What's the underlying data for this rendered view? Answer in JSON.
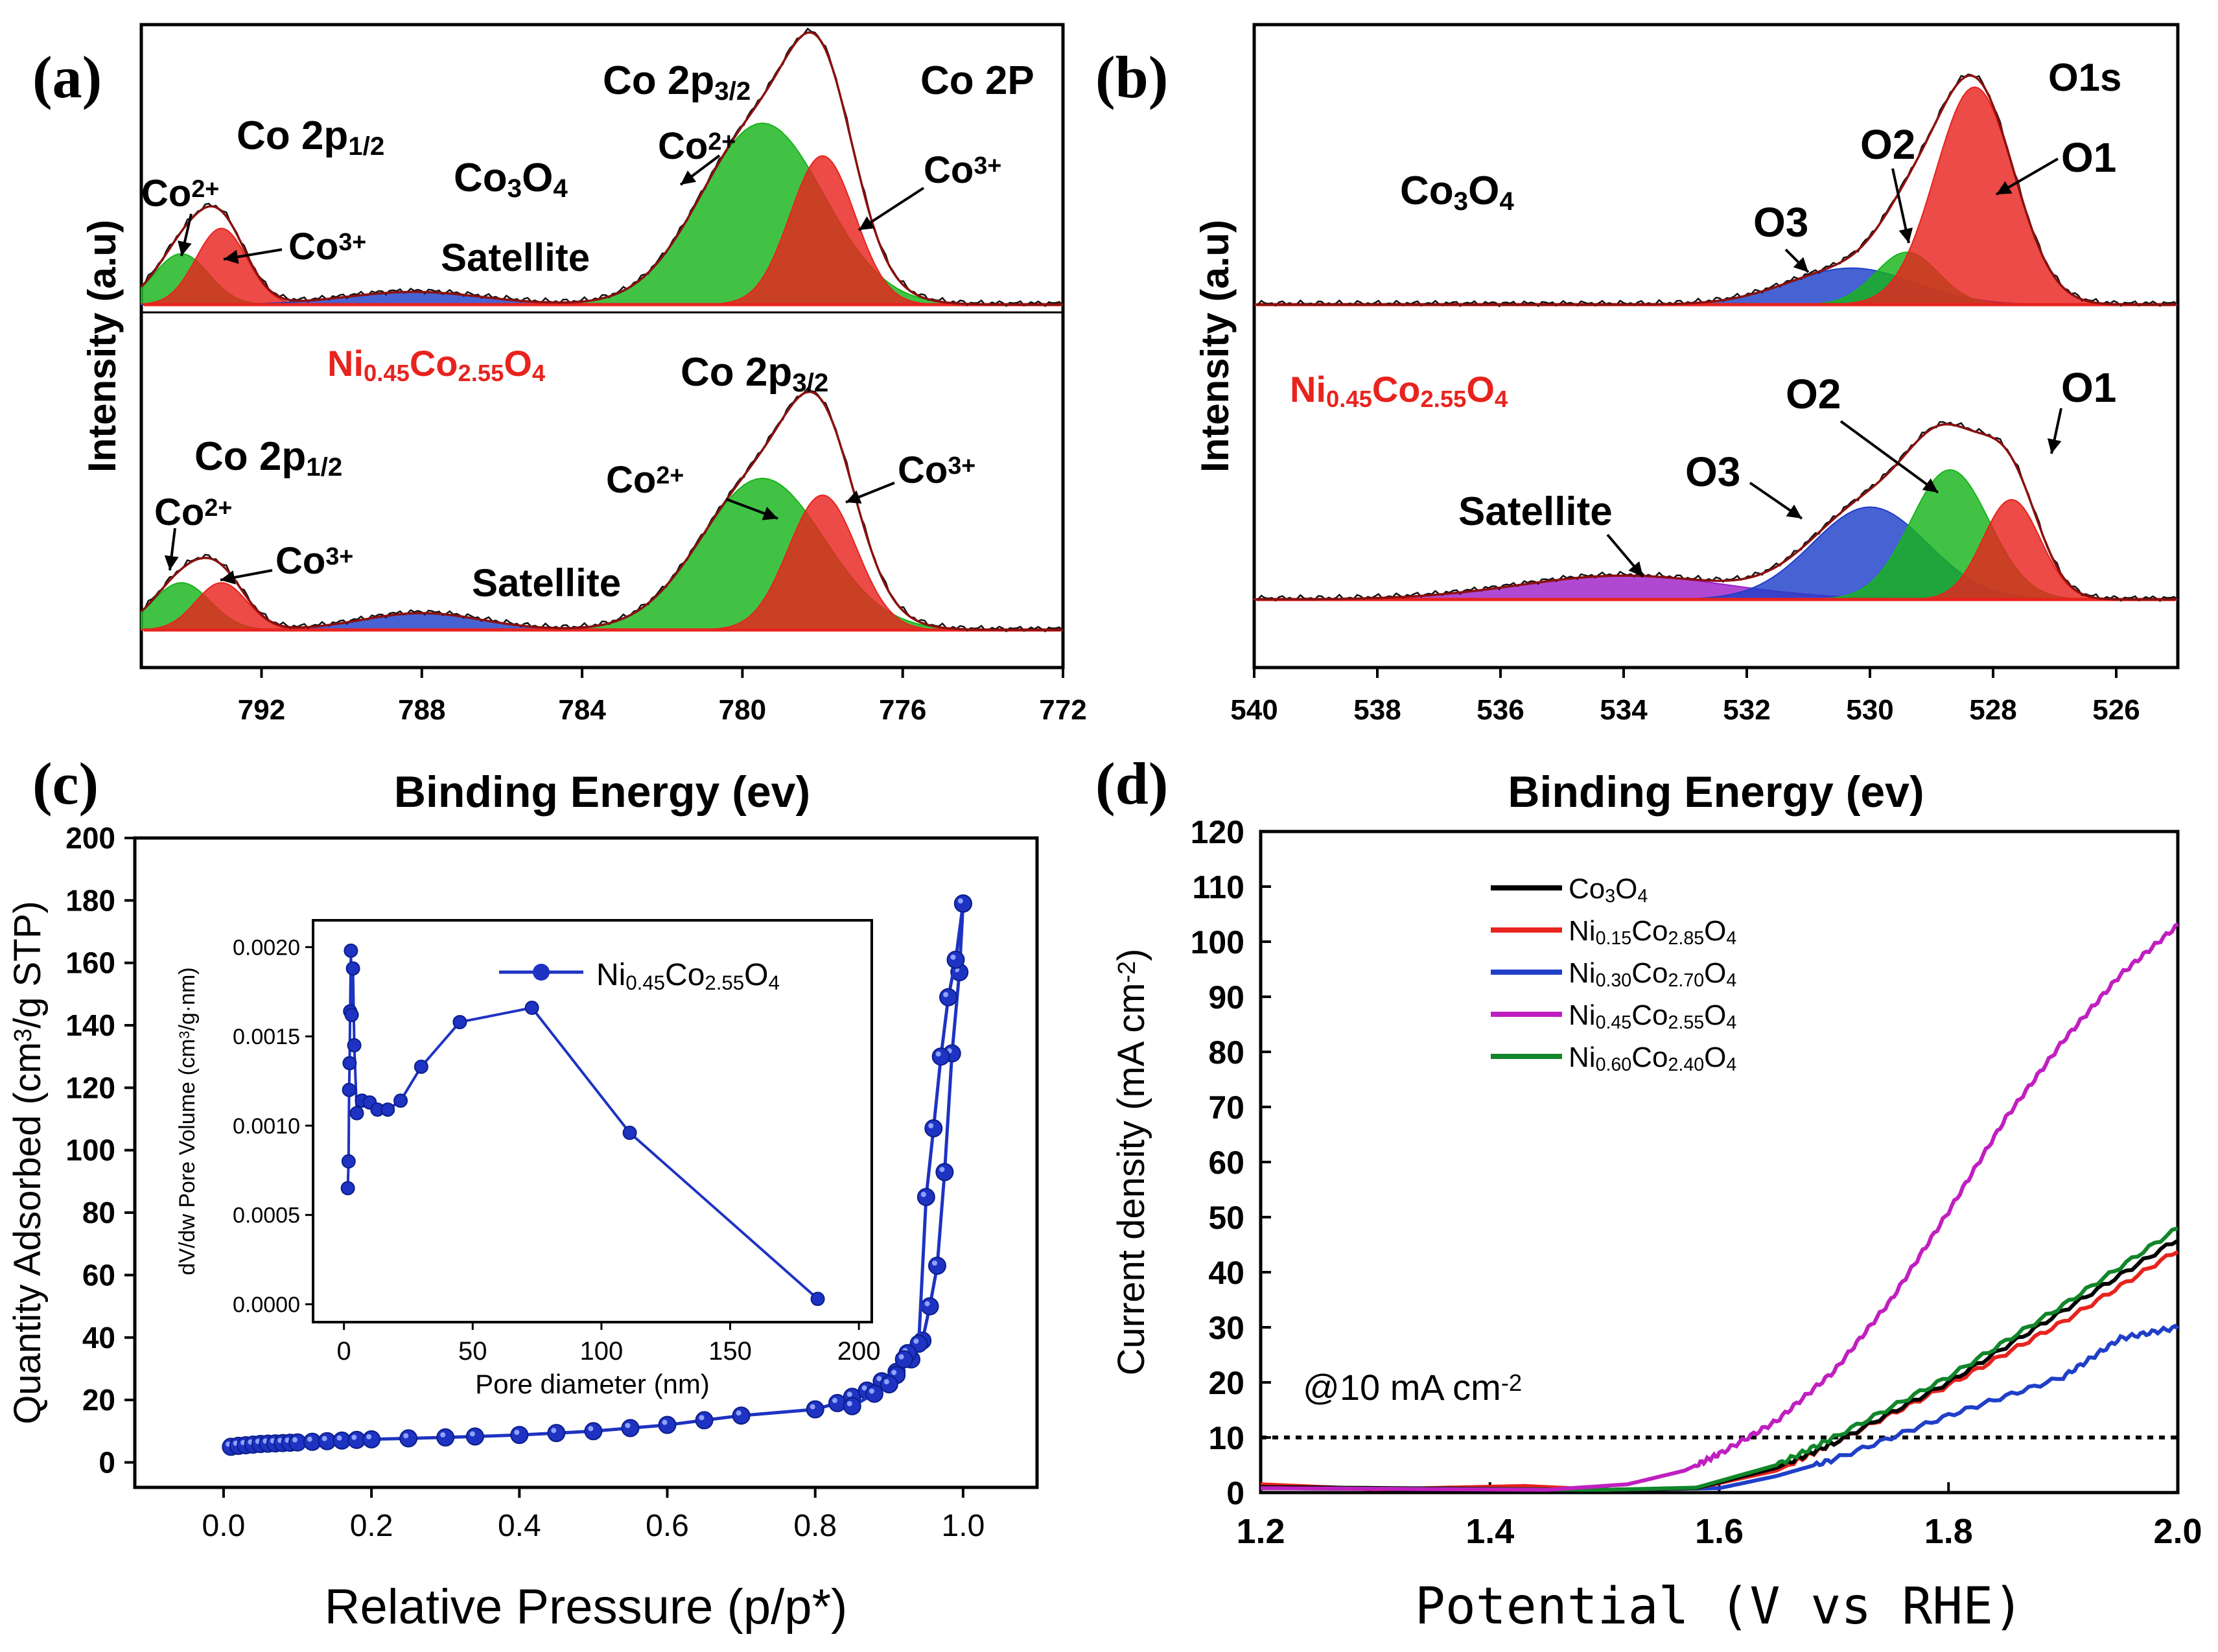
{
  "colors": {
    "axis": "#000000",
    "red": "#e8231e",
    "green": "#17b51c",
    "blue": "#1f3fc8",
    "purple": "#a020c8",
    "magenta": "#c01fc0",
    "darkgreen": "#11862a",
    "envelope": "#8b1010",
    "isotherm": "#1e33c2"
  },
  "chart_data": [
    {
      "panel": "a",
      "panel_label": "(a)",
      "type": "line",
      "title": "Co 2P",
      "xlabel": "Binding Energy (ev)",
      "ylabel": "Intensity (a.u)",
      "xlim": [
        795,
        772
      ],
      "xticks": [
        792,
        788,
        784,
        780,
        776,
        772
      ],
      "samples": [
        {
          "name": "Co3O4",
          "label_base": "Co",
          "label_sub1": "3",
          "label_mid": "O",
          "label_sub2": "4",
          "peaks": [
            {
              "name": "Co2+ (2p1/2)",
              "center": 794.0,
              "height": 0.28,
              "fwhm": 1.6,
              "color": "green"
            },
            {
              "name": "Co3+ (2p1/2)",
              "center": 793.0,
              "height": 0.42,
              "fwhm": 1.5,
              "color": "red"
            },
            {
              "name": "Satellite",
              "center": 788.2,
              "height": 0.07,
              "fwhm": 4.0,
              "color": "blue"
            },
            {
              "name": "Co2+ (2p3/2)",
              "center": 779.5,
              "height": 1.0,
              "fwhm": 3.6,
              "color": "green"
            },
            {
              "name": "Co3+ (2p3/2)",
              "center": 778.0,
              "height": 0.82,
              "fwhm": 1.9,
              "color": "red"
            }
          ],
          "annotations": {
            "p12": [
              "Co 2p",
              "1/2"
            ],
            "p32": [
              "Co 2p",
              "3/2"
            ],
            "co2_left": [
              "Co",
              "2+"
            ],
            "co3_left": [
              "Co",
              "3+"
            ],
            "co2_right": [
              "Co",
              "2+"
            ],
            "co3_right": [
              "Co",
              "3+"
            ],
            "satellite": "Satellite"
          }
        },
        {
          "name": "Ni0.45Co2.55O4",
          "label_parts": [
            "Ni",
            "0.45",
            "Co",
            "2.55",
            "O",
            "4"
          ],
          "peaks": [
            {
              "name": "Co2+ (2p1/2)",
              "center": 794.0,
              "height": 0.28,
              "fwhm": 1.7,
              "color": "green"
            },
            {
              "name": "Co3+ (2p1/2)",
              "center": 793.0,
              "height": 0.28,
              "fwhm": 1.5,
              "color": "red"
            },
            {
              "name": "Satellite",
              "center": 788.0,
              "height": 0.1,
              "fwhm": 3.5,
              "color": "blue"
            },
            {
              "name": "Co2+ (2p3/2)",
              "center": 779.5,
              "height": 0.9,
              "fwhm": 3.6,
              "color": "green"
            },
            {
              "name": "Co3+ (2p3/2)",
              "center": 778.0,
              "height": 0.8,
              "fwhm": 2.0,
              "color": "red"
            }
          ],
          "annotations": {
            "p12": [
              "Co 2p",
              "1/2"
            ],
            "p32": [
              "Co 2p",
              "3/2"
            ],
            "co2_left": [
              "Co",
              "2+"
            ],
            "co3_left": [
              "Co",
              "3+"
            ],
            "co2_right": [
              "Co",
              "2+"
            ],
            "co3_right": [
              "Co",
              "3+"
            ],
            "satellite": "Satellite"
          }
        }
      ]
    },
    {
      "panel": "b",
      "panel_label": "(b)",
      "type": "line",
      "title": "O1s",
      "xlabel": "Binding Energy (ev)",
      "ylabel": "Intensity (a.u)",
      "xlim": [
        540,
        525
      ],
      "xticks": [
        540,
        538,
        536,
        534,
        532,
        530,
        528,
        526
      ],
      "samples": [
        {
          "name": "Co3O4",
          "label_base": "Co",
          "label_sub1": "3",
          "label_mid": "O",
          "label_sub2": "4",
          "peaks": [
            {
              "name": "O3",
              "center": 530.3,
              "height": 0.23,
              "fwhm": 2.4,
              "color": "blue"
            },
            {
              "name": "O2",
              "center": 529.4,
              "height": 0.33,
              "fwhm": 1.2,
              "color": "green"
            },
            {
              "name": "O1",
              "center": 528.3,
              "height": 1.37,
              "fwhm": 1.5,
              "color": "red"
            }
          ],
          "annotations": {
            "o1": "O1",
            "o2": "O2",
            "o3": "O3"
          }
        },
        {
          "name": "Ni0.45Co2.55O4",
          "label_parts": [
            "Ni",
            "0.45",
            "Co",
            "2.55",
            "O",
            "4"
          ],
          "peaks": [
            {
              "name": "Satellite",
              "center": 534.0,
              "height": 0.16,
              "fwhm": 4.0,
              "color": "purple"
            },
            {
              "name": "O3",
              "center": 530.0,
              "height": 0.62,
              "fwhm": 2.2,
              "color": "blue"
            },
            {
              "name": "O2",
              "center": 528.7,
              "height": 0.87,
              "fwhm": 1.5,
              "color": "green"
            },
            {
              "name": "O1",
              "center": 527.7,
              "height": 0.67,
              "fwhm": 1.1,
              "color": "red"
            }
          ],
          "annotations": {
            "o1": "O1",
            "o2": "O2",
            "o3": "O3",
            "satellite": "Satellite"
          }
        }
      ]
    },
    {
      "panel": "c",
      "panel_label": "(c)",
      "type": "scatter",
      "xlabel": "Relative Pressure (p/p*)",
      "ylabel_parts": [
        "Quantity Adsorbed (cm",
        "3",
        "/g STP)"
      ],
      "xlim": [
        -0.12,
        1.1
      ],
      "ylim": [
        -8,
        200
      ],
      "xticks": [
        0.0,
        0.2,
        0.4,
        0.6,
        0.8,
        1.0
      ],
      "xtick_labels": [
        "0.0",
        "0.2",
        "0.4",
        "0.6",
        "0.8",
        "1.0"
      ],
      "yticks": [
        0,
        20,
        40,
        60,
        80,
        100,
        120,
        140,
        160,
        180,
        200
      ],
      "series": [
        {
          "name": "adsorption",
          "x": [
            0.01,
            0.02,
            0.03,
            0.04,
            0.05,
            0.06,
            0.07,
            0.08,
            0.09,
            0.1,
            0.12,
            0.14,
            0.16,
            0.18,
            0.2,
            0.25,
            0.3,
            0.34,
            0.4,
            0.45,
            0.5,
            0.55,
            0.6,
            0.65,
            0.7,
            0.8,
            0.83,
            0.85,
            0.87,
            0.89,
            0.91,
            0.93,
            0.945,
            0.955,
            0.965,
            0.975,
            0.985,
            0.995,
            1.0
          ],
          "y": [
            5.0,
            5.3,
            5.5,
            5.7,
            5.9,
            6.0,
            6.1,
            6.2,
            6.3,
            6.4,
            6.6,
            6.8,
            7.0,
            7.2,
            7.4,
            7.7,
            8.0,
            8.3,
            8.8,
            9.4,
            10.0,
            11.0,
            12.0,
            13.5,
            15.0,
            17.0,
            19.0,
            21.0,
            23.0,
            26.0,
            29.0,
            33.0,
            39.0,
            50.0,
            63.0,
            93.0,
            131.0,
            157.0,
            179.0
          ]
        },
        {
          "name": "desorption",
          "x": [
            1.0,
            0.99,
            0.98,
            0.97,
            0.96,
            0.95,
            0.94,
            0.925,
            0.92,
            0.91,
            0.9,
            0.88,
            0.85
          ],
          "y": [
            179.0,
            161.0,
            149.0,
            130.0,
            107.0,
            85.0,
            38.0,
            35.0,
            33.0,
            28.0,
            25.0,
            22.0,
            18.0
          ]
        }
      ],
      "inset": {
        "type": "line",
        "legend": [
          "Ni",
          "0.45",
          "Co",
          "2.55",
          "O",
          "4"
        ],
        "xlabel": "Pore diameter (nm)",
        "ylabel_parts": [
          "dV/dw Pore Volume (cm",
          "3",
          "/g·nm)"
        ],
        "xlim": [
          -12,
          205
        ],
        "ylim": [
          -0.0001,
          0.00215
        ],
        "xticks": [
          0,
          50,
          100,
          150,
          200
        ],
        "yticks": [
          0.0,
          0.0005,
          0.001,
          0.0015,
          0.002
        ],
        "ytick_labels": [
          "0.0000",
          "0.0005",
          "0.0010",
          "0.0015",
          "0.0020"
        ],
        "x": [
          1.5,
          1.8,
          2.0,
          2.2,
          2.4,
          2.7,
          3.0,
          3.5,
          4.0,
          5.0,
          7.0,
          10.0,
          13.0,
          17.0,
          22.0,
          30.0,
          45.0,
          73.0,
          111.0,
          184.0
        ],
        "y": [
          0.00065,
          0.0008,
          0.0012,
          0.00135,
          0.00164,
          0.00198,
          0.00162,
          0.00188,
          0.00145,
          0.00107,
          0.00114,
          0.00113,
          0.00109,
          0.00109,
          0.00114,
          0.00133,
          0.00158,
          0.00166,
          0.00096,
          3e-05
        ]
      }
    },
    {
      "panel": "d",
      "panel_label": "(d)",
      "type": "line",
      "xlabel": "Potential (V vs RHE)",
      "ylabel_parts": [
        "Current density (mA cm",
        "-2",
        ")"
      ],
      "xlim": [
        1.2,
        2.0
      ],
      "ylim": [
        0,
        120
      ],
      "xticks": [
        1.2,
        1.4,
        1.6,
        1.8,
        2.0
      ],
      "xtick_labels": [
        "1.2",
        "1.4",
        "1.6",
        "1.8",
        "2.0"
      ],
      "yticks": [
        0,
        10,
        20,
        30,
        40,
        50,
        60,
        70,
        80,
        90,
        100,
        110,
        120
      ],
      "reference_line": {
        "y": 10,
        "label": [
          "@10 mA cm",
          "-2"
        ]
      },
      "series": [
        {
          "name": "Co3O4",
          "legend": [
            "Co",
            "3",
            "O",
            "4"
          ],
          "color": "black",
          "x": [
            1.2,
            1.5,
            1.58,
            1.65,
            1.7,
            1.8,
            1.9,
            2.0
          ],
          "y": [
            1.0,
            0.5,
            0.8,
            4.5,
            9.0,
            20.0,
            33.0,
            46.0
          ]
        },
        {
          "name": "Ni0.15Co2.85O4",
          "legend": [
            "Ni",
            "0.15",
            "Co",
            "2.85",
            "O",
            "4"
          ],
          "color": "red",
          "x": [
            1.2,
            1.3,
            1.43,
            1.5,
            1.58,
            1.65,
            1.7,
            1.8,
            1.9,
            2.0
          ],
          "y": [
            1.5,
            0.6,
            1.2,
            0.5,
            0.8,
            4.0,
            9.0,
            19.5,
            31.0,
            44.0
          ]
        },
        {
          "name": "Ni0.30Co2.70O4",
          "legend": [
            "Ni",
            "0.30",
            "Co",
            "2.70",
            "O",
            "4"
          ],
          "color": "blue",
          "x": [
            1.2,
            1.5,
            1.6,
            1.65,
            1.7,
            1.8,
            1.9,
            1.95,
            2.0
          ],
          "y": [
            0.8,
            0.5,
            0.8,
            3.0,
            6.0,
            14.0,
            21.0,
            28.0,
            30.0
          ]
        },
        {
          "name": "Ni0.45Co2.55O4",
          "legend": [
            "Ni",
            "0.45",
            "Co",
            "2.55",
            "O",
            "4"
          ],
          "color": "magenta",
          "x": [
            1.2,
            1.45,
            1.52,
            1.57,
            1.6,
            1.65,
            1.7,
            1.75,
            1.8,
            1.85,
            1.9,
            1.95,
            2.0
          ],
          "y": [
            0.8,
            0.5,
            1.5,
            4.0,
            7.0,
            13.0,
            22.0,
            35.0,
            51.0,
            68.0,
            82.0,
            94.0,
            103.0
          ]
        },
        {
          "name": "Ni0.60Co2.40O4",
          "legend": [
            "Ni",
            "0.60",
            "Co",
            "2.40",
            "O",
            "4"
          ],
          "color": "darkgreen",
          "x": [
            1.2,
            1.5,
            1.58,
            1.65,
            1.7,
            1.8,
            1.9,
            2.0
          ],
          "y": [
            0.8,
            0.5,
            0.9,
            5.0,
            10.0,
            21.0,
            34.0,
            48.0
          ]
        }
      ]
    }
  ]
}
